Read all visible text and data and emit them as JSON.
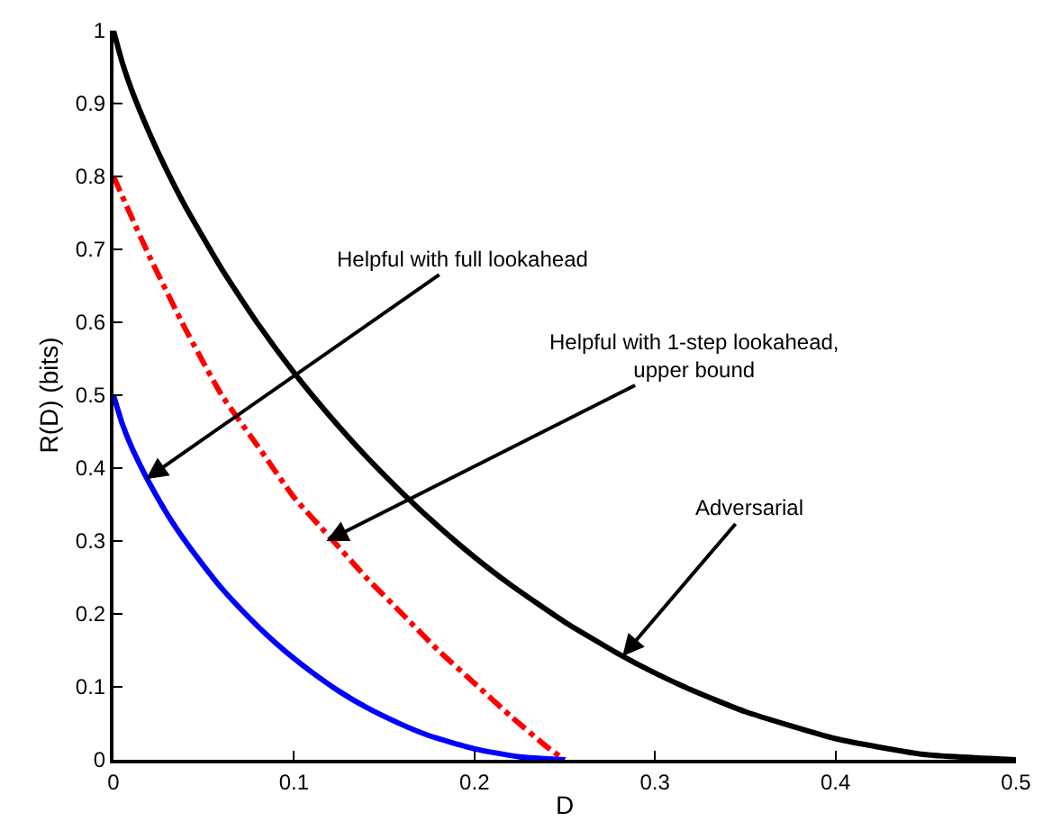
{
  "chart_data": {
    "type": "line",
    "xlabel": "D",
    "ylabel": "R(D) (bits)",
    "xlim": [
      0,
      0.5
    ],
    "xticks": [
      0,
      0.1,
      0.2,
      0.3,
      0.4,
      0.5
    ],
    "ylim": [
      0,
      1
    ],
    "yticks": [
      0,
      0.1,
      0.2,
      0.3,
      0.4,
      0.5,
      0.6,
      0.7,
      0.8,
      0.9,
      1
    ],
    "marker": "none",
    "series": [
      {
        "color": "#000000",
        "line_style": "solid",
        "x": [
          0,
          0.005,
          0.01,
          0.02,
          0.03,
          0.04,
          0.06,
          0.08,
          0.1,
          0.12,
          0.14,
          0.16,
          0.18,
          0.2,
          0.22,
          0.25,
          0.28,
          0.3,
          0.32,
          0.35,
          0.4,
          0.45,
          0.5
        ],
        "values": [
          1,
          0.955,
          0.919,
          0.859,
          0.806,
          0.758,
          0.673,
          0.598,
          0.531,
          0.471,
          0.416,
          0.366,
          0.32,
          0.278,
          0.24,
          0.189,
          0.145,
          0.119,
          0.096,
          0.066,
          0.029,
          0.007,
          0
        ]
      },
      {
        "color": "#ff0000",
        "line_style": "dashdot",
        "x": [
          0,
          0.02,
          0.04,
          0.06,
          0.08,
          0.1,
          0.12,
          0.14,
          0.16,
          0.18,
          0.2,
          0.22,
          0.24,
          0.25
        ],
        "values": [
          0.8,
          0.69,
          0.59,
          0.5,
          0.43,
          0.36,
          0.305,
          0.25,
          0.2,
          0.15,
          0.105,
          0.06,
          0.018,
          0
        ]
      },
      {
        "color": "#0000ff",
        "line_style": "solid",
        "x": [
          0,
          0.005,
          0.01,
          0.015,
          0.02,
          0.03,
          0.04,
          0.05,
          0.06,
          0.07,
          0.08,
          0.09,
          0.1,
          0.11,
          0.125,
          0.14,
          0.16,
          0.175,
          0.2,
          0.225,
          0.25
        ],
        "values": [
          0.5,
          0.46,
          0.429,
          0.403,
          0.379,
          0.336,
          0.299,
          0.266,
          0.235,
          0.208,
          0.183,
          0.16,
          0.139,
          0.12,
          0.094,
          0.072,
          0.048,
          0.033,
          0.015,
          0.004,
          0
        ]
      }
    ],
    "annotations": [
      {
        "text": "Helpful with full lookahead",
        "x": 0.018,
        "y": 0.385
      },
      {
        "text": "Helpful with 1-step lookahead,\nupper bound",
        "x": 0.118,
        "y": 0.3
      },
      {
        "text": "Adversarial",
        "x": 0.282,
        "y": 0.142
      }
    ]
  }
}
